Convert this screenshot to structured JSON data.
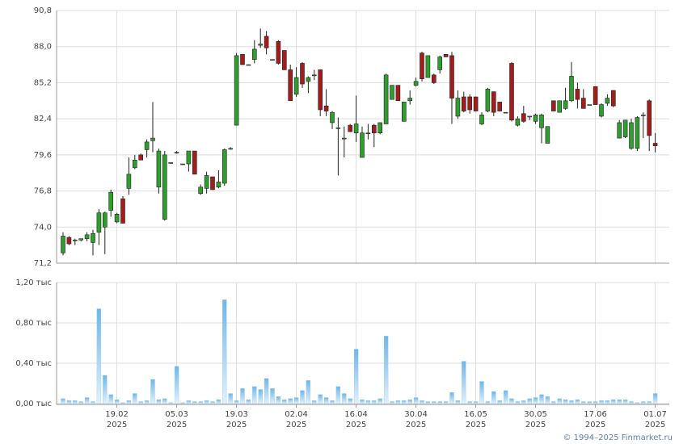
{
  "chart_data": [
    {
      "type": "candlestick",
      "categories": [
        null,
        null,
        null,
        null,
        null,
        null,
        null,
        null,
        null,
        {
          "day": "19.02",
          "year": "2025"
        },
        null,
        null,
        null,
        null,
        null,
        null,
        null,
        null,
        null,
        {
          "day": "05.03",
          "year": "2025"
        },
        null,
        null,
        null,
        null,
        null,
        null,
        null,
        null,
        null,
        {
          "day": "19.03",
          "year": "2025"
        },
        null,
        null,
        null,
        null,
        null,
        null,
        null,
        null,
        null,
        {
          "day": "02.04",
          "year": "2025"
        },
        null,
        null,
        null,
        null,
        null,
        null,
        null,
        null,
        null,
        {
          "day": "16.04",
          "year": "2025"
        },
        null,
        null,
        null,
        null,
        null,
        null,
        null,
        null,
        null,
        {
          "day": "30.04",
          "year": "2025"
        },
        null,
        null,
        null,
        null,
        null,
        null,
        null,
        null,
        null,
        {
          "day": "16.05",
          "year": "2025"
        },
        null,
        null,
        null,
        null,
        null,
        null,
        null,
        null,
        null,
        {
          "day": "30.05",
          "year": "2025"
        },
        null,
        null,
        null,
        null,
        null,
        null,
        null,
        null,
        null,
        {
          "day": "17.06",
          "year": "2025"
        },
        null,
        null,
        null,
        null,
        null,
        null,
        null,
        null,
        null,
        {
          "day": "01.07",
          "year": "2025"
        }
      ],
      "open": [
        72.0,
        73.2,
        73.0,
        73.0,
        73.1,
        72.8,
        73.6,
        74.0,
        75.3,
        74.4,
        76.2,
        77.0,
        78.6,
        79.6,
        80.0,
        80.7,
        77.1,
        74.6,
        79.0,
        79.8,
        78.9,
        78.9,
        79.9,
        76.6,
        77.0,
        77.9,
        77.1,
        77.4,
        80.1,
        81.9,
        87.4,
        86.6,
        87.0,
        88.1,
        88.8,
        87.0,
        88.4,
        87.7,
        86.2,
        84.3,
        86.7,
        85.3,
        85.8,
        86.2,
        83.4,
        82.1,
        81.7,
        80.9,
        81.9,
        81.3,
        79.4,
        81.3,
        81.9,
        81.3,
        82.0,
        83.9,
        85.0,
        82.2,
        83.8,
        85.0,
        87.5,
        85.6,
        85.8,
        86.2,
        87.4,
        87.3,
        82.6,
        84.1,
        84.1,
        84.1,
        82.0,
        83.0,
        84.5,
        83.7,
        82.9,
        86.7,
        81.9,
        82.8,
        82.6,
        82.2,
        81.7,
        80.5,
        83.8,
        82.9,
        83.2,
        83.8,
        84.7,
        84.0,
        83.5,
        84.9,
        82.6,
        83.6,
        84.6,
        80.9,
        81.0,
        80.1,
        80.1,
        82.7,
        83.8,
        80.5
      ],
      "high": [
        73.6,
        73.3,
        73.1,
        73.1,
        73.6,
        73.8,
        75.4,
        75.2,
        76.9,
        75.1,
        76.4,
        79.4,
        79.6,
        79.7,
        80.8,
        83.7,
        80.1,
        79.9,
        79.0,
        79.9,
        78.9,
        79.9,
        79.9,
        77.3,
        78.3,
        77.9,
        78.4,
        80.1,
        80.2,
        87.5,
        87.4,
        86.6,
        88.5,
        89.4,
        89.2,
        87.0,
        88.5,
        87.7,
        86.6,
        86.4,
        86.8,
        85.7,
        86.2,
        86.2,
        84.7,
        83.0,
        82.5,
        81.8,
        82.0,
        84.2,
        81.8,
        82.0,
        82.0,
        82.1,
        85.9,
        85.0,
        85.0,
        83.7,
        84.6,
        85.6,
        87.6,
        87.3,
        85.9,
        87.3,
        87.4,
        87.6,
        84.6,
        84.5,
        84.3,
        84.1,
        82.9,
        84.8,
        84.5,
        83.7,
        82.9,
        86.8,
        82.6,
        83.4,
        82.6,
        82.8,
        82.8,
        81.8,
        83.8,
        83.8,
        84.8,
        86.8,
        85.2,
        84.7,
        83.5,
        84.9,
        83.6,
        84.3,
        84.6,
        82.3,
        82.3,
        82.4,
        82.6,
        82.9,
        83.9,
        81.3
      ],
      "low": [
        71.8,
        72.6,
        72.6,
        72.9,
        72.9,
        71.8,
        72.6,
        71.9,
        74.8,
        74.3,
        74.3,
        76.5,
        78.5,
        79.2,
        79.4,
        79.8,
        76.6,
        74.5,
        78.9,
        79.7,
        78.9,
        78.3,
        78.1,
        76.5,
        76.6,
        76.9,
        77.0,
        77.2,
        80.0,
        81.9,
        86.6,
        86.6,
        86.7,
        87.9,
        87.4,
        87.0,
        86.6,
        86.2,
        83.8,
        84.1,
        84.8,
        84.4,
        85.4,
        82.6,
        82.6,
        81.6,
        78.0,
        79.4,
        81.4,
        80.6,
        79.4,
        80.8,
        80.2,
        81.2,
        82.0,
        83.9,
        83.8,
        82.2,
        83.5,
        84.9,
        85.3,
        85.6,
        85.1,
        85.9,
        87.2,
        82.0,
        82.4,
        82.9,
        82.8,
        83.0,
        81.9,
        82.9,
        82.6,
        83.0,
        82.9,
        82.2,
        81.8,
        82.1,
        82.3,
        82.0,
        80.5,
        80.5,
        83.0,
        82.9,
        83.1,
        83.7,
        83.2,
        83.2,
        83.5,
        83.5,
        82.5,
        83.4,
        83.3,
        80.9,
        80.9,
        80.0,
        79.9,
        80.9,
        79.9,
        79.8
      ],
      "close": [
        73.3,
        72.7,
        73.0,
        73.1,
        73.4,
        73.5,
        75.1,
        75.1,
        76.7,
        75.0,
        74.3,
        78.1,
        79.2,
        79.2,
        80.6,
        80.9,
        79.9,
        79.6,
        79.0,
        79.8,
        78.9,
        79.9,
        78.1,
        77.1,
        78.0,
        76.9,
        77.5,
        80.0,
        80.1,
        87.3,
        86.6,
        86.6,
        87.8,
        88.2,
        87.9,
        87.0,
        86.7,
        86.2,
        83.8,
        85.6,
        85.1,
        85.6,
        85.8,
        83.1,
        83.0,
        82.9,
        81.7,
        80.9,
        81.4,
        82.0,
        81.3,
        81.3,
        81.3,
        82.1,
        85.8,
        85.0,
        83.8,
        83.7,
        84.0,
        85.3,
        85.5,
        87.3,
        85.2,
        87.2,
        87.2,
        84.0,
        84.0,
        83.0,
        83.1,
        83.0,
        82.7,
        84.7,
        82.9,
        83.0,
        82.9,
        82.3,
        82.4,
        82.2,
        82.6,
        82.7,
        82.7,
        81.8,
        83.0,
        83.8,
        83.8,
        85.7,
        83.9,
        83.2,
        83.5,
        83.5,
        83.5,
        84.0,
        83.4,
        82.1,
        82.3,
        82.1,
        82.5,
        82.7,
        81.1,
        80.3
      ],
      "up_color": "#2e9e2e",
      "down_color": "#a31d1d",
      "ylim": [
        71.2,
        90.8
      ],
      "yticks": [
        {
          "value": 71.2,
          "label": "71,2"
        },
        {
          "value": 74.0,
          "label": "74,0"
        },
        {
          "value": 76.8,
          "label": "76,8"
        },
        {
          "value": 79.6,
          "label": "79,6"
        },
        {
          "value": 82.4,
          "label": "82,4"
        },
        {
          "value": 85.2,
          "label": "85,2"
        },
        {
          "value": 88.0,
          "label": "88,0"
        },
        {
          "value": 90.8,
          "label": "90,8"
        }
      ],
      "grid": true
    },
    {
      "type": "bar",
      "values": [
        0.05,
        0.03,
        0.03,
        0.02,
        0.06,
        0.02,
        0.94,
        0.28,
        0.09,
        0.04,
        0.01,
        0.03,
        0.1,
        0.02,
        0.03,
        0.24,
        0.04,
        0.05,
        0.01,
        0.37,
        0.01,
        0.03,
        0.02,
        0.02,
        0.03,
        0.02,
        0.04,
        1.03,
        0.1,
        0.03,
        0.15,
        0.04,
        0.17,
        0.14,
        0.25,
        0.15,
        0.07,
        0.04,
        0.05,
        0.06,
        0.13,
        0.23,
        0.03,
        0.09,
        0.06,
        0.03,
        0.17,
        0.1,
        0.05,
        0.54,
        0.04,
        0.03,
        0.03,
        0.05,
        0.67,
        0.02,
        0.03,
        0.03,
        0.04,
        0.06,
        0.03,
        0.02,
        0.02,
        0.02,
        0.02,
        0.11,
        0.03,
        0.42,
        0.02,
        0.02,
        0.22,
        0.02,
        0.12,
        0.03,
        0.13,
        0.05,
        0.02,
        0.03,
        0.05,
        0.06,
        0.09,
        0.07,
        0.02,
        0.05,
        0.04,
        0.03,
        0.04,
        0.02,
        0.02,
        0.02,
        0.03,
        0.03,
        0.04,
        0.04,
        0.04,
        0.02,
        0.01,
        0.02,
        0.02,
        0.1
      ],
      "color": "#8cc6ee",
      "ylim": [
        0,
        1.2
      ],
      "yticks": [
        {
          "value": 0,
          "label": "0,00 тыс"
        },
        {
          "value": 0.4,
          "label": "0,40 тыс"
        },
        {
          "value": 0.8,
          "label": "0,80 тыс"
        },
        {
          "value": 1.2,
          "label": "1,20 тыс"
        }
      ],
      "grid": true
    }
  ],
  "credit": "© 1994–2025 Finmarket.ru"
}
